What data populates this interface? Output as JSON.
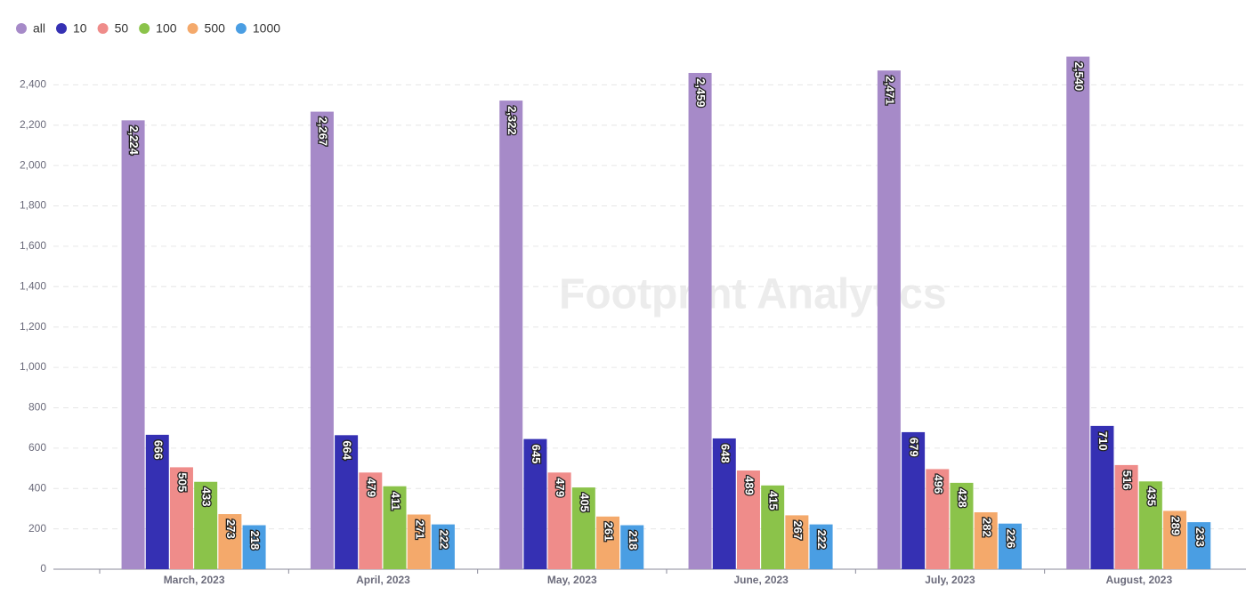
{
  "chart_data": {
    "type": "bar",
    "watermark": "Footprint Analytics",
    "categories": [
      "March, 2023",
      "April, 2023",
      "May, 2023",
      "June, 2023",
      "July, 2023",
      "August, 2023"
    ],
    "series": [
      {
        "name": "all",
        "color": "#a68ac8",
        "values": [
          2224,
          2267,
          2322,
          2459,
          2471,
          2540
        ],
        "value_labels": [
          "2,224",
          "2,267",
          "2,322",
          "2,459",
          "2,471",
          "2,540"
        ]
      },
      {
        "name": "10",
        "color": "#3530b3",
        "values": [
          666,
          664,
          645,
          648,
          679,
          710
        ]
      },
      {
        "name": "50",
        "color": "#ef8c8a",
        "values": [
          505,
          479,
          479,
          489,
          496,
          516
        ]
      },
      {
        "name": "100",
        "color": "#8bc34a",
        "values": [
          433,
          411,
          405,
          415,
          428,
          435
        ]
      },
      {
        "name": "500",
        "color": "#f4a96b",
        "values": [
          273,
          271,
          261,
          267,
          282,
          289
        ]
      },
      {
        "name": "1000",
        "color": "#4a9ee3",
        "values": [
          218,
          222,
          218,
          222,
          226,
          233
        ]
      }
    ],
    "ylim": [
      0,
      2600
    ],
    "yticks": [
      0,
      200,
      400,
      600,
      800,
      {
        "value": 1000,
        "label": "1,000"
      },
      {
        "value": 1200,
        "label": "1,200"
      },
      {
        "value": 1400,
        "label": "1,400"
      },
      {
        "value": 1600,
        "label": "1,600"
      },
      {
        "value": 1800,
        "label": "1,800"
      },
      {
        "value": 2000,
        "label": "2,000"
      },
      {
        "value": 2200,
        "label": "2,200"
      },
      {
        "value": 2400,
        "label": "2,400"
      }
    ],
    "grid": true
  }
}
